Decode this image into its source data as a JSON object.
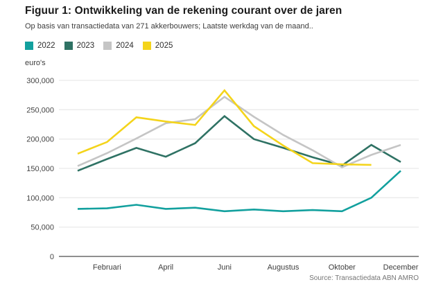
{
  "figure": {
    "title": "Figuur 1: Ontwikkeling van de rekening courant over de jaren",
    "subtitle": "Op basis van transactiedata van 271 akkerbouwers; Laatste werkdag van de maand..",
    "source": "Source: Transactiedata ABN AMRO"
  },
  "chart_data": {
    "type": "line",
    "title": "Figuur 1: Ontwikkeling van de rekening courant over de jaren",
    "ylabel": "euro's",
    "xlabel": "",
    "ylim": [
      0,
      300000
    ],
    "ytick_step": 50000,
    "ytick_labels": [
      "0",
      "50,000",
      "100,000",
      "150,000",
      "200,000",
      "250,000",
      "300,000"
    ],
    "grid": "horizontal-only",
    "legend_position": "top-left",
    "n_points": 12,
    "x_ticks": [
      {
        "index": 1,
        "label": "Februari"
      },
      {
        "index": 3,
        "label": "April"
      },
      {
        "index": 5,
        "label": "Juni"
      },
      {
        "index": 7,
        "label": "Augustus"
      },
      {
        "index": 9,
        "label": "Oktober"
      },
      {
        "index": 11,
        "label": "December"
      }
    ],
    "series": [
      {
        "name": "2022",
        "color": "#12a09e",
        "values": [
          81000,
          82000,
          88000,
          81000,
          83000,
          77000,
          80000,
          77000,
          79000,
          77000,
          100000,
          146000
        ]
      },
      {
        "name": "2023",
        "color": "#2f7264",
        "values": [
          146000,
          166000,
          185000,
          170000,
          193000,
          239000,
          200000,
          185000,
          169000,
          155000,
          190000,
          161000
        ]
      },
      {
        "name": "2024",
        "color": "#c5c5c5",
        "values": [
          154000,
          176000,
          201000,
          227000,
          234000,
          272000,
          238000,
          207000,
          181000,
          152000,
          173000,
          190000
        ]
      },
      {
        "name": "2025",
        "color": "#f4d41b",
        "values": [
          175000,
          195000,
          237000,
          230000,
          224000,
          283000,
          222000,
          189000,
          159000,
          157000,
          156000
        ]
      }
    ]
  }
}
